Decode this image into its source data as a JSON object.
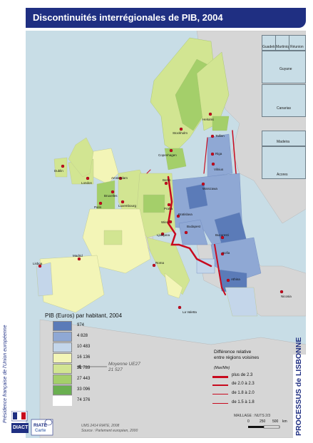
{
  "title": "Discontinuités interrégionales de PIB, 2004",
  "side_text": "Présidence française de l'Union européenne",
  "banner_text": "PROCESSUS de LISBONNE",
  "legend": {
    "title": "PIB (Euros) par habitant, 2004",
    "classes": [
      {
        "value": "974",
        "color": "#5b7bb8"
      },
      {
        "value": "4 828",
        "color": "#8fa8d4"
      },
      {
        "value": "10 483",
        "color": "#c4d6ea"
      },
      {
        "value": "16 136",
        "color": "#f3f5b7"
      },
      {
        "value": "21 789",
        "color": "#d2e592"
      },
      {
        "value": "27 443",
        "color": "#a4cf6a"
      },
      {
        "value": "33 096",
        "color": "#6aaf50"
      },
      {
        "value": "74 376",
        "color": "#ffffff"
      }
    ],
    "moyenne_label": "Moyenne UE27",
    "moyenne_value": "21 527"
  },
  "difference": {
    "title_line1": "Différence relative",
    "title_line2": "entre régions voisines",
    "unit": "(Max/Min)",
    "rows": [
      {
        "label": "plus de 2.3",
        "color": "#c80a1e"
      },
      {
        "label": "de 2.0 à 2.3",
        "color": "#c80a1e"
      },
      {
        "label": "de 1.8 à 2.0",
        "color": "#c80a1e"
      },
      {
        "label": "de 1.5 à 1.8",
        "color": "#c80a1e"
      }
    ]
  },
  "insets": [
    {
      "label": "Guadeloupe"
    },
    {
      "label": "Martinique"
    },
    {
      "label": "Réunion"
    },
    {
      "label": "Guyane"
    },
    {
      "label": "Canarias"
    },
    {
      "label": "Madeira"
    },
    {
      "label": "Acores"
    }
  ],
  "cities": [
    "Helsinki",
    "Tallinn",
    "Stockholm",
    "Riga",
    "Dublin",
    "Copenhagen",
    "Vilnius",
    "London",
    "Amsterdam",
    "Berlin",
    "Warszawa",
    "Bruxelles",
    "Luxembourg",
    "Paris",
    "Praha",
    "Bratislava",
    "Wien",
    "Budapest",
    "Bucuresti",
    "Ljubljana",
    "Sofia",
    "Roma",
    "Madrid",
    "Lisboa",
    "Athina",
    "Nicosia",
    "La Valetta"
  ],
  "credits": {
    "line1": "UMS 2414 RIATE, 2008",
    "line2": "Source : Parlement européen, 2000"
  },
  "maillage": "MAILLAGE : NUTS 2/3",
  "scale": {
    "labels": [
      "0",
      "250",
      "500"
    ],
    "unit": "km"
  },
  "logos": [
    "DIACT",
    "RIATE",
    "Carte"
  ]
}
